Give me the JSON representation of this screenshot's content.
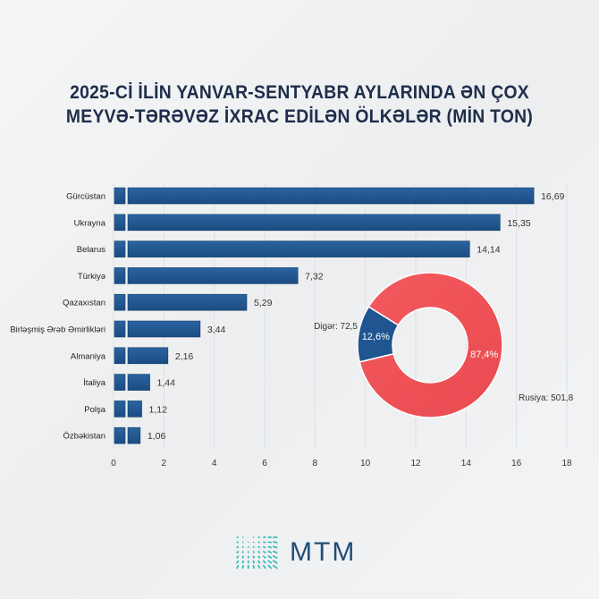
{
  "chart_data": [
    {
      "type": "bar",
      "orientation": "horizontal",
      "title": "2025-ci ilin yanvar-sentyabr aylarında ən çox meyvə-tərəvəz ixrac edilən ölkələr (min ton)",
      "title_lines": [
        "2025-Cİ İLİN YANVAR-SENTYABR AYLARINDA ƏN ÇOX",
        "MEYVƏ-TƏRƏVƏZ İXRAC EDİLƏN ÖLKƏLƏR (MİN TON)"
      ],
      "categories": [
        "Gürcüstan",
        "Ukrayna",
        "Belarus",
        "Türkiyə",
        "Qazaxıstan",
        "Birləşmiş Ərəb Əmirlikləri",
        "Almaniya",
        "İtaliya",
        "Polşa",
        "Özbəkistan"
      ],
      "values": [
        16.69,
        15.35,
        14.14,
        7.32,
        5.29,
        3.44,
        2.16,
        1.44,
        1.12,
        1.06
      ],
      "value_labels": [
        "16,69",
        "15,35",
        "14,14",
        "7,32",
        "5,29",
        "3,44",
        "2,16",
        "1,44",
        "1,12",
        "1,06"
      ],
      "xlim": [
        0,
        18
      ],
      "xticks": [
        "0",
        "2",
        "4",
        "6",
        "8",
        "10",
        "12",
        "14",
        "16",
        "18"
      ],
      "grid": true,
      "bar_color": "#1f5590"
    },
    {
      "type": "pie",
      "donut": true,
      "slices": [
        {
          "label": "Rusiya: 501,8",
          "value": 501.8,
          "percent_label": "87,4%",
          "color": "#f0565a"
        },
        {
          "label": "Digər: 72,5",
          "value": 72.5,
          "percent_label": "12,6%",
          "color": "#1f5590"
        }
      ]
    }
  ],
  "logo": {
    "text": "MTM",
    "color": "#1f4e79",
    "mark_color": "#2bb8b0"
  }
}
